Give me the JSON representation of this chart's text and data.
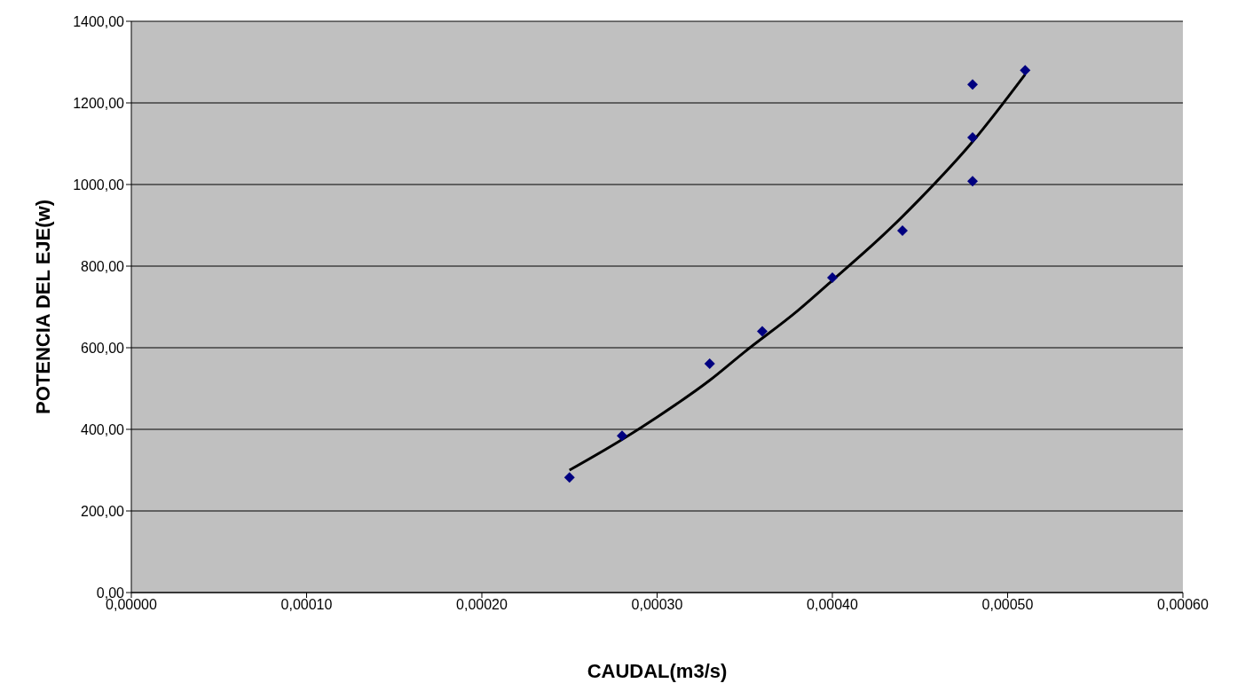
{
  "chart_data": {
    "type": "scatter",
    "xlabel": "CAUDAL(m3/s)",
    "ylabel": "POTENCIA DEL EJE(w)",
    "series": [
      {
        "color": "#000080",
        "marker": "diamond",
        "x": [
          0.00025,
          0.00028,
          0.00033,
          0.00036,
          0.0004,
          0.00044,
          0.00048,
          0.00048,
          0.00048,
          0.00051
        ],
        "values": [
          282,
          384,
          561,
          640,
          772,
          887,
          1245,
          1115,
          1008,
          1280
        ]
      },
      {
        "type": "line",
        "color": "#000000",
        "marker": "none",
        "line_style": "solid",
        "x": [
          0.00025,
          0.00028,
          0.0003,
          0.00033,
          0.00035,
          0.00038,
          0.0004,
          0.00043,
          0.00045,
          0.00048,
          0.00051
        ],
        "values": [
          300,
          375,
          430,
          520,
          590,
          690,
          765,
          880,
          965,
          1105,
          1270
        ]
      }
    ],
    "xlim": [
      0,
      0.0006
    ],
    "xticks": [
      {
        "value": 0,
        "label": "0,00000"
      },
      {
        "value": 0.0001,
        "label": "0,00010"
      },
      {
        "value": 0.0002,
        "label": "0,00020"
      },
      {
        "value": 0.0003,
        "label": "0,00030"
      },
      {
        "value": 0.0004,
        "label": "0,00040"
      },
      {
        "value": 0.0005,
        "label": "0,00050"
      },
      {
        "value": 0.0006,
        "label": "0,00060"
      }
    ],
    "ylim": [
      0,
      1400
    ],
    "yticks": [
      {
        "value": 0,
        "label": "0,00"
      },
      {
        "value": 200,
        "label": "200,00"
      },
      {
        "value": 400,
        "label": "400,00"
      },
      {
        "value": 600,
        "label": "600,00"
      },
      {
        "value": 800,
        "label": "800,00"
      },
      {
        "value": 1000,
        "label": "1000,00"
      },
      {
        "value": 1200,
        "label": "1200,00"
      },
      {
        "value": 1400,
        "label": "1400,00"
      }
    ],
    "grid": "y",
    "legend": false
  }
}
